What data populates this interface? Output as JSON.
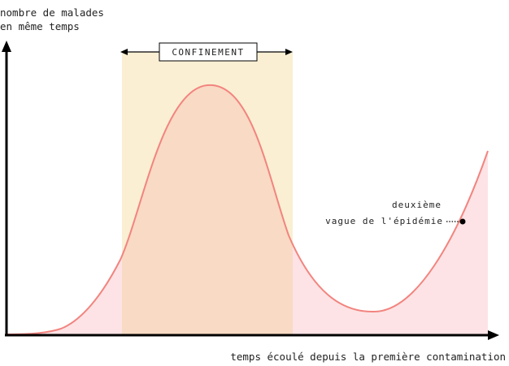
{
  "y_axis": {
    "label_line1": "nombre de malades",
    "label_line2": "en même temps"
  },
  "x_axis": {
    "label": "temps écoulé depuis la première contamination"
  },
  "confinement": {
    "label": "CONFINEMENT"
  },
  "annotation": {
    "line1": "deuxième",
    "line2": "vague de l'épidémie"
  },
  "colors": {
    "curve": "#f2847f",
    "area_fill": "#fde3e5",
    "confinement_band": "#faefd3",
    "overlap_fill": "#f9dac4",
    "axis": "#000000"
  }
}
